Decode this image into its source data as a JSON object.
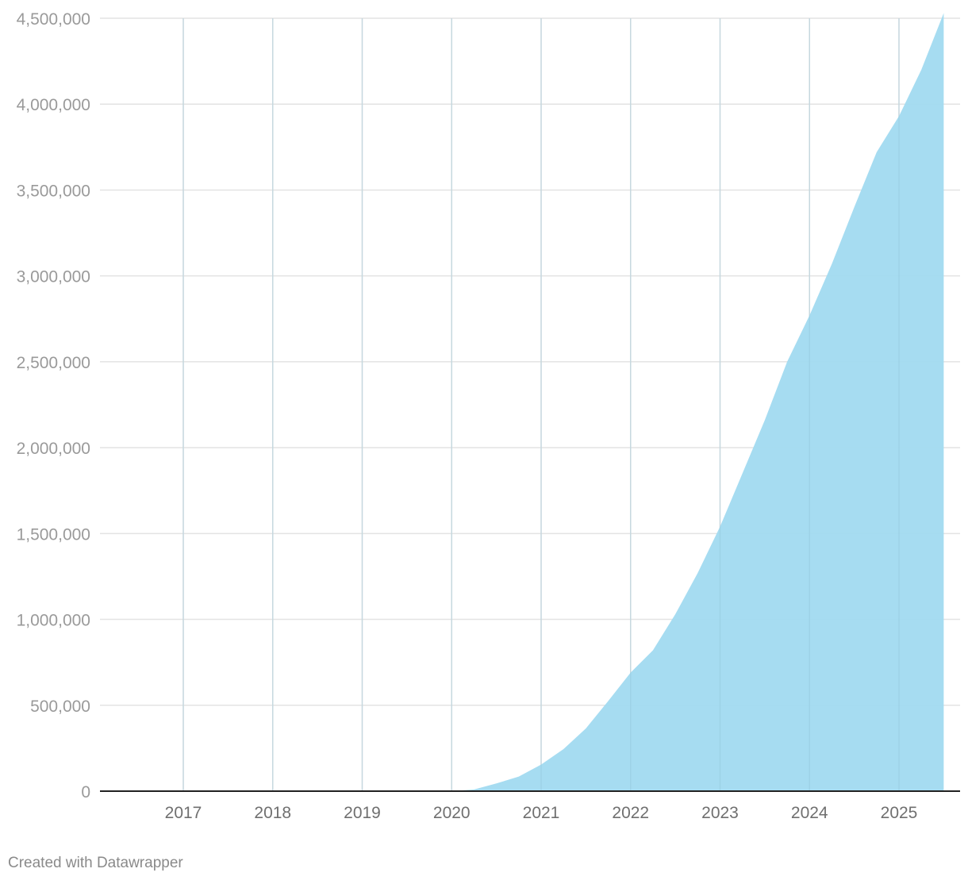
{
  "chart_data": {
    "type": "area",
    "title": "",
    "xlabel": "",
    "ylabel": "",
    "xlim": [
      2016.2,
      2025.7
    ],
    "ylim": [
      0,
      4500000
    ],
    "grid": true,
    "color": "#a1daf0",
    "y_ticks": [
      {
        "value": 0,
        "label": "0"
      },
      {
        "value": 500000,
        "label": "500,000"
      },
      {
        "value": 1000000,
        "label": "1,000,000"
      },
      {
        "value": 1500000,
        "label": "1,500,000"
      },
      {
        "value": 2000000,
        "label": "2,000,000"
      },
      {
        "value": 2500000,
        "label": "2,500,000"
      },
      {
        "value": 3000000,
        "label": "3,000,000"
      },
      {
        "value": 3500000,
        "label": "3,500,000"
      },
      {
        "value": 4000000,
        "label": "4,000,000"
      },
      {
        "value": 4500000,
        "label": "4,500,000"
      }
    ],
    "x_ticks": [
      {
        "value": 2017,
        "label": "2017"
      },
      {
        "value": 2018,
        "label": "2018"
      },
      {
        "value": 2019,
        "label": "2019"
      },
      {
        "value": 2020,
        "label": "2020"
      },
      {
        "value": 2021,
        "label": "2021"
      },
      {
        "value": 2022,
        "label": "2022"
      },
      {
        "value": 2023,
        "label": "2023"
      },
      {
        "value": 2024,
        "label": "2024"
      },
      {
        "value": 2025,
        "label": "2025"
      }
    ],
    "x": [
      2020.0,
      2020.25,
      2020.5,
      2020.75,
      2021.0,
      2021.25,
      2021.5,
      2021.75,
      2022.0,
      2022.25,
      2022.5,
      2022.75,
      2023.0,
      2023.25,
      2023.5,
      2023.75,
      2024.0,
      2024.25,
      2024.5,
      2024.75,
      2025.0,
      2025.25,
      2025.5
    ],
    "values": [
      0,
      10000,
      45000,
      85000,
      155000,
      245000,
      365000,
      525000,
      690000,
      820000,
      1030000,
      1270000,
      1540000,
      1850000,
      2160000,
      2500000,
      2770000,
      3070000,
      3400000,
      3720000,
      3930000,
      4200000,
      4530000
    ]
  },
  "footer": {
    "credit": "Created with Datawrapper"
  }
}
